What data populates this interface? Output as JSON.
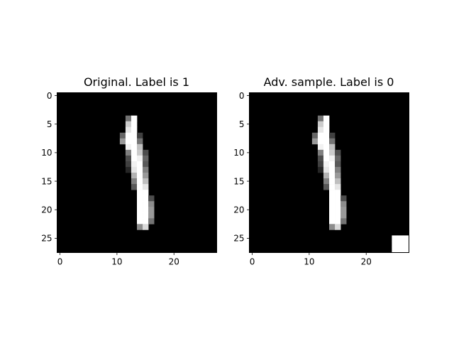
{
  "chart_data": [
    {
      "type": "heatmap",
      "title": "Original. Label is 1",
      "xlabel": "",
      "ylabel": "",
      "xlim": [
        -0.5,
        27.5
      ],
      "ylim": [
        27.5,
        -0.5
      ],
      "xticks": [
        0,
        10,
        20
      ],
      "yticks": [
        0,
        5,
        10,
        15,
        20,
        25
      ],
      "grid": false,
      "colormap": "gray",
      "value_range": [
        0,
        1
      ],
      "shape": [
        28,
        28
      ],
      "nonzero_pixels": [
        {
          "row": 4,
          "col": 12,
          "v": 0.45
        },
        {
          "row": 4,
          "col": 13,
          "v": 1.0
        },
        {
          "row": 5,
          "col": 12,
          "v": 0.8
        },
        {
          "row": 5,
          "col": 13,
          "v": 1.0
        },
        {
          "row": 6,
          "col": 12,
          "v": 0.9
        },
        {
          "row": 6,
          "col": 13,
          "v": 1.0
        },
        {
          "row": 7,
          "col": 11,
          "v": 0.4
        },
        {
          "row": 7,
          "col": 12,
          "v": 1.0
        },
        {
          "row": 7,
          "col": 13,
          "v": 1.0
        },
        {
          "row": 7,
          "col": 14,
          "v": 0.25
        },
        {
          "row": 8,
          "col": 11,
          "v": 0.6
        },
        {
          "row": 8,
          "col": 12,
          "v": 1.0
        },
        {
          "row": 8,
          "col": 13,
          "v": 1.0
        },
        {
          "row": 8,
          "col": 14,
          "v": 0.45
        },
        {
          "row": 9,
          "col": 12,
          "v": 0.95
        },
        {
          "row": 9,
          "col": 13,
          "v": 1.0
        },
        {
          "row": 9,
          "col": 14,
          "v": 0.75
        },
        {
          "row": 10,
          "col": 12,
          "v": 0.5
        },
        {
          "row": 10,
          "col": 13,
          "v": 1.0
        },
        {
          "row": 10,
          "col": 14,
          "v": 0.8
        },
        {
          "row": 10,
          "col": 15,
          "v": 0.3
        },
        {
          "row": 11,
          "col": 12,
          "v": 0.3
        },
        {
          "row": 11,
          "col": 13,
          "v": 1.0
        },
        {
          "row": 11,
          "col": 14,
          "v": 0.95
        },
        {
          "row": 11,
          "col": 15,
          "v": 0.4
        },
        {
          "row": 12,
          "col": 12,
          "v": 0.25
        },
        {
          "row": 12,
          "col": 13,
          "v": 0.95
        },
        {
          "row": 12,
          "col": 14,
          "v": 1.0
        },
        {
          "row": 12,
          "col": 15,
          "v": 0.35
        },
        {
          "row": 13,
          "col": 12,
          "v": 0.15
        },
        {
          "row": 13,
          "col": 13,
          "v": 0.9
        },
        {
          "row": 13,
          "col": 14,
          "v": 1.0
        },
        {
          "row": 13,
          "col": 15,
          "v": 0.5
        },
        {
          "row": 14,
          "col": 13,
          "v": 0.7
        },
        {
          "row": 14,
          "col": 14,
          "v": 1.0
        },
        {
          "row": 14,
          "col": 15,
          "v": 0.6
        },
        {
          "row": 15,
          "col": 13,
          "v": 0.5
        },
        {
          "row": 15,
          "col": 14,
          "v": 1.0
        },
        {
          "row": 15,
          "col": 15,
          "v": 0.75
        },
        {
          "row": 16,
          "col": 13,
          "v": 0.35
        },
        {
          "row": 16,
          "col": 14,
          "v": 1.0
        },
        {
          "row": 16,
          "col": 15,
          "v": 0.9
        },
        {
          "row": 17,
          "col": 14,
          "v": 1.0
        },
        {
          "row": 17,
          "col": 15,
          "v": 1.0
        },
        {
          "row": 18,
          "col": 14,
          "v": 1.0
        },
        {
          "row": 18,
          "col": 15,
          "v": 1.0
        },
        {
          "row": 18,
          "col": 16,
          "v": 0.3
        },
        {
          "row": 19,
          "col": 14,
          "v": 1.0
        },
        {
          "row": 19,
          "col": 15,
          "v": 1.0
        },
        {
          "row": 19,
          "col": 16,
          "v": 0.55
        },
        {
          "row": 20,
          "col": 14,
          "v": 1.0
        },
        {
          "row": 20,
          "col": 15,
          "v": 1.0
        },
        {
          "row": 20,
          "col": 16,
          "v": 0.6
        },
        {
          "row": 21,
          "col": 14,
          "v": 1.0
        },
        {
          "row": 21,
          "col": 15,
          "v": 1.0
        },
        {
          "row": 21,
          "col": 16,
          "v": 0.6
        },
        {
          "row": 22,
          "col": 14,
          "v": 1.0
        },
        {
          "row": 22,
          "col": 15,
          "v": 1.0
        },
        {
          "row": 22,
          "col": 16,
          "v": 0.45
        },
        {
          "row": 23,
          "col": 14,
          "v": 0.55
        },
        {
          "row": 23,
          "col": 15,
          "v": 0.85
        }
      ]
    },
    {
      "type": "heatmap",
      "title": "Adv. sample. Label is 0",
      "xlabel": "",
      "ylabel": "",
      "xlim": [
        -0.5,
        27.5
      ],
      "ylim": [
        27.5,
        -0.5
      ],
      "xticks": [
        0,
        10,
        20
      ],
      "yticks": [
        0,
        5,
        10,
        15,
        20,
        25
      ],
      "grid": false,
      "colormap": "gray",
      "value_range": [
        0,
        1
      ],
      "shape": [
        28,
        28
      ],
      "same_pixels_as_panel": 0,
      "patch": {
        "row_start": 25,
        "row_end": 27,
        "col_start": 25,
        "col_end": 27,
        "v": 1.0
      }
    }
  ]
}
